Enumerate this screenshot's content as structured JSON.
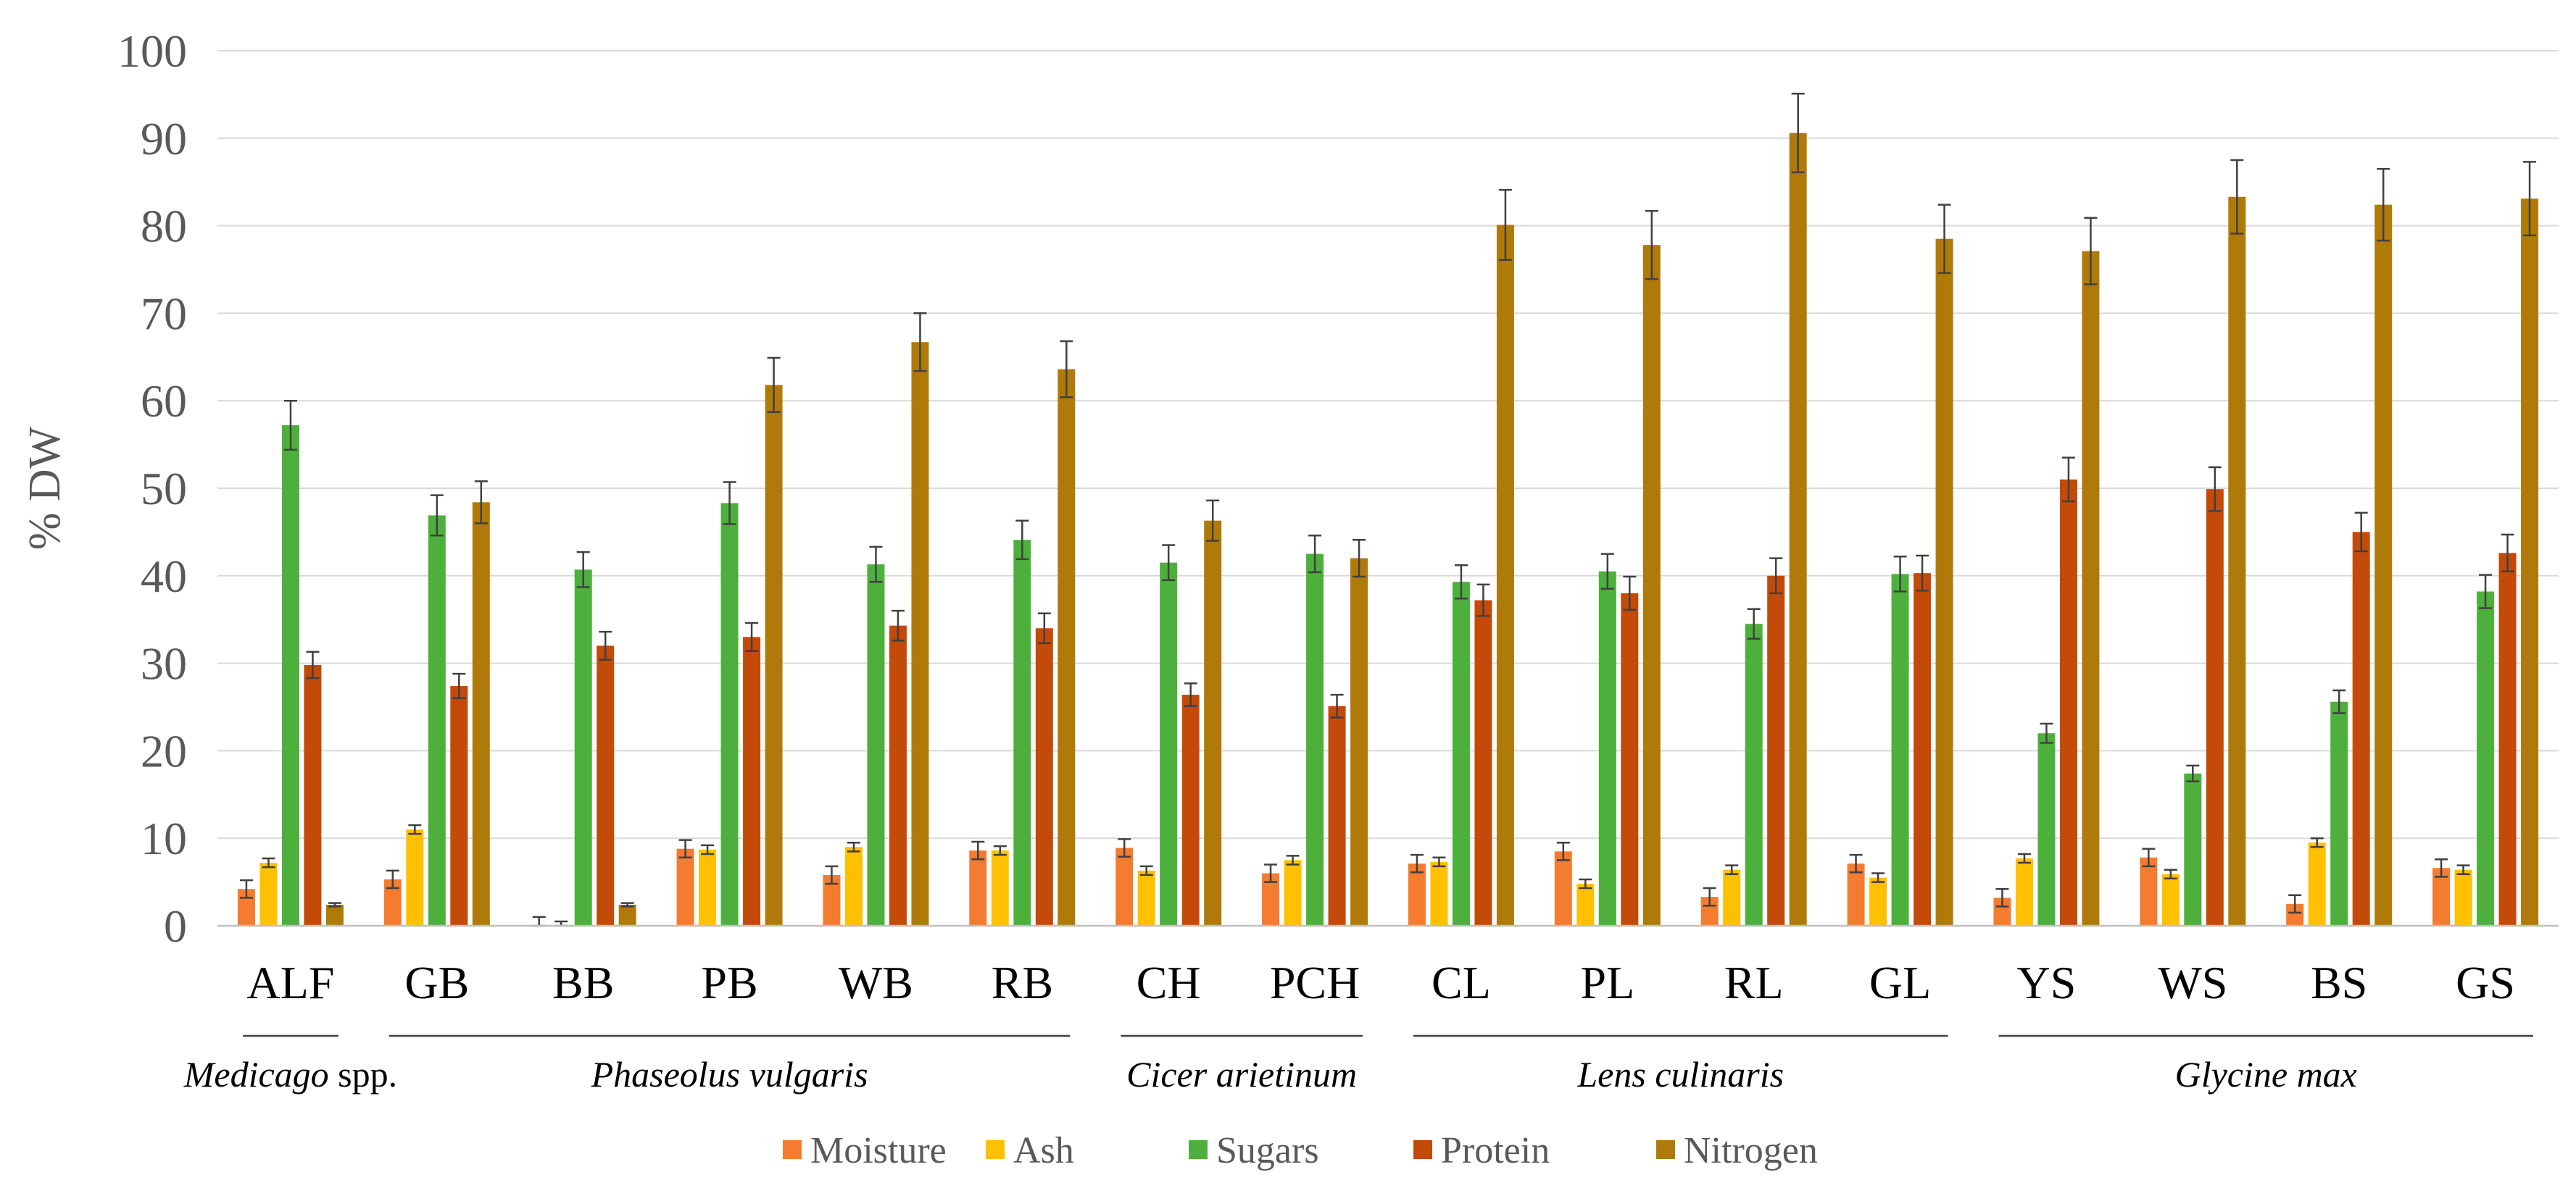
{
  "chart_data": {
    "type": "bar",
    "ylabel": "% DW",
    "ylim": [
      0,
      100
    ],
    "yticks": [
      0,
      10,
      20,
      30,
      40,
      50,
      60,
      70,
      80,
      90,
      100
    ],
    "grid": true,
    "legend_position": "bottom",
    "categories": [
      "ALF",
      "GB",
      "BB",
      "PB",
      "WB",
      "RB",
      "CH",
      "PCH",
      "CL",
      "PL",
      "RL",
      "GL",
      "YS",
      "WS",
      "BS",
      "GS"
    ],
    "groups": [
      {
        "label": "Medicago",
        "label_suffix": " spp.",
        "start": 0,
        "end": 0
      },
      {
        "label": "Phaseolus vulgaris",
        "label_suffix": "",
        "start": 1,
        "end": 5
      },
      {
        "label": "Cicer arietinum",
        "label_suffix": "",
        "start": 6,
        "end": 7
      },
      {
        "label": "Lens culinaris",
        "label_suffix": "",
        "start": 8,
        "end": 11
      },
      {
        "label": "Glycine max",
        "label_suffix": "",
        "start": 12,
        "end": 15
      }
    ],
    "series": [
      {
        "name": "Moisture",
        "color": "#F47C30",
        "values": [
          4.2,
          5.3,
          0,
          8.8,
          5.8,
          8.6,
          8.9,
          6.0,
          7.1,
          8.5,
          3.3,
          7.1,
          3.2,
          7.8,
          2.5,
          6.6
        ],
        "errors": [
          1.0,
          1.0,
          1.0,
          1.0,
          1.0,
          1.0,
          1.0,
          1.0,
          1.0,
          1.0,
          1.0,
          1.0,
          1.0,
          1.0,
          1.0,
          1.0
        ]
      },
      {
        "name": "Ash",
        "color": "#FFC000",
        "values": [
          7.2,
          11.0,
          0,
          8.7,
          9.0,
          8.6,
          6.3,
          7.5,
          7.3,
          4.8,
          6.4,
          5.5,
          7.7,
          5.9,
          9.5,
          6.4
        ],
        "errors": [
          0.5,
          0.5,
          0.5,
          0.5,
          0.5,
          0.5,
          0.5,
          0.5,
          0.5,
          0.5,
          0.5,
          0.5,
          0.5,
          0.5,
          0.5,
          0.5
        ]
      },
      {
        "name": "Sugars",
        "color": "#4EB03C",
        "values": [
          57.2,
          46.9,
          40.7,
          48.3,
          41.3,
          44.1,
          41.5,
          42.5,
          39.3,
          40.5,
          34.5,
          40.2,
          22.0,
          17.4,
          25.6,
          38.2
        ],
        "errors": [
          2.8,
          2.3,
          2.0,
          2.4,
          2.0,
          2.2,
          2.0,
          2.1,
          1.9,
          2.0,
          1.7,
          2.0,
          1.1,
          0.9,
          1.3,
          1.9
        ]
      },
      {
        "name": "Protein",
        "color": "#C44A0A",
        "values": [
          29.8,
          27.4,
          32.0,
          33.0,
          34.3,
          34.0,
          26.4,
          25.1,
          37.2,
          38.0,
          40.0,
          40.3,
          51.0,
          49.9,
          45.0,
          42.6
        ],
        "errors": [
          1.5,
          1.4,
          1.6,
          1.6,
          1.7,
          1.7,
          1.3,
          1.3,
          1.8,
          1.9,
          2.0,
          2.0,
          2.5,
          2.5,
          2.2,
          2.1
        ]
      },
      {
        "name": "Nitrogen",
        "color": "#B07A0A",
        "values": [
          2.4,
          48.4,
          2.4,
          61.8,
          66.7,
          63.6,
          46.3,
          42.0,
          80.1,
          77.8,
          90.6,
          78.5,
          77.1,
          83.3,
          82.4,
          83.1
        ],
        "errors": [
          0.2,
          2.4,
          0.2,
          3.1,
          3.3,
          3.2,
          2.3,
          2.1,
          4.0,
          3.9,
          4.5,
          3.9,
          3.8,
          4.2,
          4.1,
          4.2
        ]
      }
    ]
  }
}
